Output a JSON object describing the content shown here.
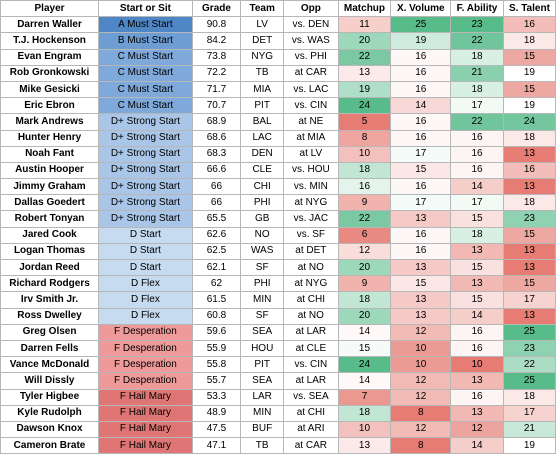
{
  "headers": [
    "Player",
    "Start or Sit",
    "Grade",
    "Team",
    "Opp",
    "Matchup",
    "X. Volume",
    "F. Ability",
    "S. Talent"
  ],
  "rows": [
    {
      "player": "Darren Waller",
      "sit": "A Must Start",
      "grade": "90.8",
      "team": "LV",
      "opp": "vs. DEN",
      "matchup": "11",
      "xvol": "25",
      "fab": "23",
      "stal": "16"
    },
    {
      "player": "T.J. Hockenson",
      "sit": "B Must Start",
      "grade": "84.2",
      "team": "DET",
      "opp": "vs. WAS",
      "matchup": "20",
      "xvol": "19",
      "fab": "22",
      "stal": "18"
    },
    {
      "player": "Evan Engram",
      "sit": "C Must Start",
      "grade": "73.8",
      "team": "NYG",
      "opp": "vs. PHI",
      "matchup": "22",
      "xvol": "16",
      "fab": "18",
      "stal": "15"
    },
    {
      "player": "Rob Gronkowski",
      "sit": "C Must Start",
      "grade": "72.2",
      "team": "TB",
      "opp": "at CAR",
      "matchup": "13",
      "xvol": "16",
      "fab": "21",
      "stal": "19"
    },
    {
      "player": "Mike Gesicki",
      "sit": "C Must Start",
      "grade": "71.7",
      "team": "MIA",
      "opp": "vs. LAC",
      "matchup": "19",
      "xvol": "16",
      "fab": "18",
      "stal": "15"
    },
    {
      "player": "Eric Ebron",
      "sit": "C Must Start",
      "grade": "70.7",
      "team": "PIT",
      "opp": "vs. CIN",
      "matchup": "24",
      "xvol": "14",
      "fab": "17",
      "stal": "19"
    },
    {
      "player": "Mark Andrews",
      "sit": "D+ Strong Start",
      "grade": "68.9",
      "team": "BAL",
      "opp": "at NE",
      "matchup": "5",
      "xvol": "16",
      "fab": "22",
      "stal": "24"
    },
    {
      "player": "Hunter Henry",
      "sit": "D+ Strong Start",
      "grade": "68.6",
      "team": "LAC",
      "opp": "at MIA",
      "matchup": "8",
      "xvol": "16",
      "fab": "16",
      "stal": "18"
    },
    {
      "player": "Noah Fant",
      "sit": "D+ Strong Start",
      "grade": "68.3",
      "team": "DEN",
      "opp": "at LV",
      "matchup": "10",
      "xvol": "17",
      "fab": "16",
      "stal": "13"
    },
    {
      "player": "Austin Hooper",
      "sit": "D+ Strong Start",
      "grade": "66.6",
      "team": "CLE",
      "opp": "vs. HOU",
      "matchup": "18",
      "xvol": "15",
      "fab": "16",
      "stal": "16"
    },
    {
      "player": "Jimmy Graham",
      "sit": "D+ Strong Start",
      "grade": "66",
      "team": "CHI",
      "opp": "vs. MIN",
      "matchup": "16",
      "xvol": "16",
      "fab": "14",
      "stal": "13"
    },
    {
      "player": "Dallas Goedert",
      "sit": "D+ Strong Start",
      "grade": "66",
      "team": "PHI",
      "opp": "at NYG",
      "matchup": "9",
      "xvol": "17",
      "fab": "17",
      "stal": "18"
    },
    {
      "player": "Robert Tonyan",
      "sit": "D+ Strong Start",
      "grade": "65.5",
      "team": "GB",
      "opp": "vs. JAC",
      "matchup": "22",
      "xvol": "13",
      "fab": "15",
      "stal": "23"
    },
    {
      "player": "Jared Cook",
      "sit": "D Start",
      "grade": "62.6",
      "team": "NO",
      "opp": "vs. SF",
      "matchup": "6",
      "xvol": "16",
      "fab": "18",
      "stal": "15"
    },
    {
      "player": "Logan Thomas",
      "sit": "D Start",
      "grade": "62.5",
      "team": "WAS",
      "opp": "at DET",
      "matchup": "12",
      "xvol": "16",
      "fab": "13",
      "stal": "13"
    },
    {
      "player": "Jordan Reed",
      "sit": "D Start",
      "grade": "62.1",
      "team": "SF",
      "opp": "at NO",
      "matchup": "20",
      "xvol": "13",
      "fab": "15",
      "stal": "13"
    },
    {
      "player": "Richard Rodgers",
      "sit": "D Flex",
      "grade": "62",
      "team": "PHI",
      "opp": "at NYG",
      "matchup": "9",
      "xvol": "15",
      "fab": "13",
      "stal": "15"
    },
    {
      "player": "Irv Smith Jr.",
      "sit": "D Flex",
      "grade": "61.5",
      "team": "MIN",
      "opp": "at CHI",
      "matchup": "18",
      "xvol": "13",
      "fab": "15",
      "stal": "17"
    },
    {
      "player": "Ross Dwelley",
      "sit": "D Flex",
      "grade": "60.8",
      "team": "SF",
      "opp": "at NO",
      "matchup": "20",
      "xvol": "13",
      "fab": "14",
      "stal": "13"
    },
    {
      "player": "Greg Olsen",
      "sit": "F Desperation",
      "grade": "59.6",
      "team": "SEA",
      "opp": "at LAR",
      "matchup": "14",
      "xvol": "12",
      "fab": "16",
      "stal": "25"
    },
    {
      "player": "Darren Fells",
      "sit": "F Desperation",
      "grade": "55.9",
      "team": "HOU",
      "opp": "at CLE",
      "matchup": "15",
      "xvol": "10",
      "fab": "16",
      "stal": "23"
    },
    {
      "player": "Vance McDonald",
      "sit": "F Desperation",
      "grade": "55.8",
      "team": "PIT",
      "opp": "vs. CIN",
      "matchup": "24",
      "xvol": "10",
      "fab": "10",
      "stal": "22"
    },
    {
      "player": "Will Dissly",
      "sit": "F Desperation",
      "grade": "55.7",
      "team": "SEA",
      "opp": "at LAR",
      "matchup": "14",
      "xvol": "12",
      "fab": "13",
      "stal": "25"
    },
    {
      "player": "Tyler Higbee",
      "sit": "F Hail Mary",
      "grade": "53.3",
      "team": "LAR",
      "opp": "vs. SEA",
      "matchup": "7",
      "xvol": "12",
      "fab": "16",
      "stal": "18"
    },
    {
      "player": "Kyle Rudolph",
      "sit": "F Hail Mary",
      "grade": "48.9",
      "team": "MIN",
      "opp": "at CHI",
      "matchup": "18",
      "xvol": "8",
      "fab": "13",
      "stal": "17"
    },
    {
      "player": "Dawson Knox",
      "sit": "F Hail Mary",
      "grade": "47.5",
      "team": "BUF",
      "opp": "at ARI",
      "matchup": "10",
      "xvol": "12",
      "fab": "12",
      "stal": "21"
    },
    {
      "player": "Cameron Brate",
      "sit": "F Hail Mary",
      "grade": "47.1",
      "team": "TB",
      "opp": "at CAR",
      "matchup": "13",
      "xvol": "8",
      "fab": "14",
      "stal": "19"
    }
  ],
  "tier_colors": {
    "A": "#4f86c6",
    "B": "#6e9dd3",
    "C": "#7fa9da",
    "D+": "#a9c6e8",
    "D": "#c6daf0",
    "F Desperation": "#ee9a9a",
    "F Hail Mary": "#e07575"
  },
  "scale_colors": {
    "high": "#57bb8a",
    "mid": "#ffffff",
    "low": "#e67c73"
  }
}
